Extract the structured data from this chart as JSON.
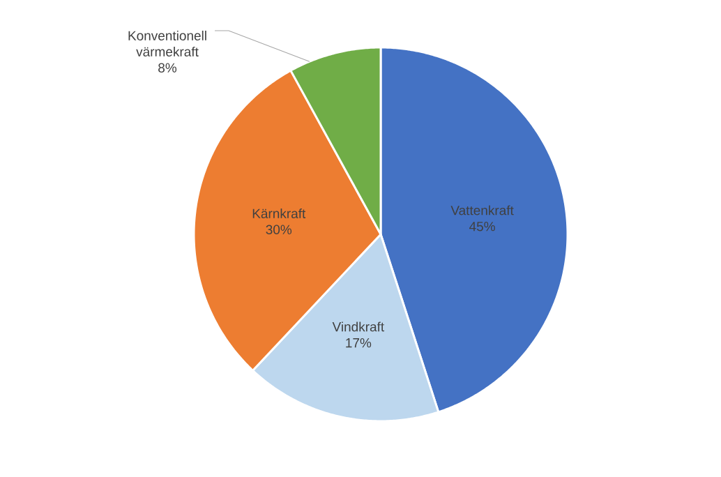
{
  "chart_data": {
    "type": "pie",
    "categories": [
      "Vattenkraft",
      "Vindkraft",
      "Kärnkraft",
      "Konventionell värmekraft"
    ],
    "values": [
      45,
      17,
      30,
      8
    ],
    "colors": [
      "#4472c4",
      "#bdd7ee",
      "#ed7d31",
      "#70ad47"
    ],
    "value_labels": [
      "45%",
      "17%",
      "30%",
      "8%"
    ]
  }
}
